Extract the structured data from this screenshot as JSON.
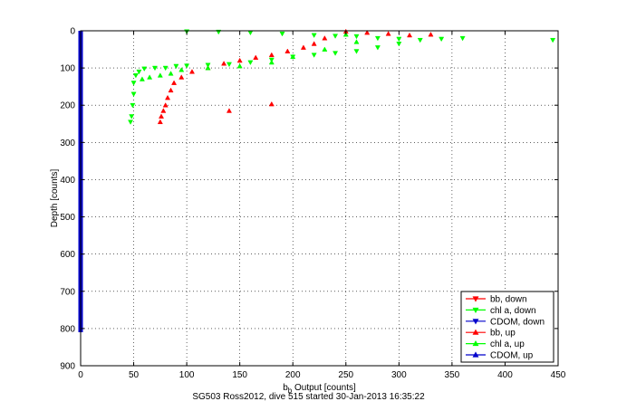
{
  "chart_data": {
    "type": "scatter",
    "title": "",
    "xlabel": "b",
    "xlabel_sub": "b",
    "xlabel_rest": " Output [counts]",
    "ylabel": "Depth [counts]",
    "xlim": [
      0,
      450
    ],
    "ylim": [
      900,
      0
    ],
    "y_inverted": true,
    "grid": true,
    "legend_placement": "bottom-right",
    "xticks": [
      "0",
      "50",
      "100",
      "150",
      "200",
      "250",
      "300",
      "350",
      "400",
      "450"
    ],
    "yticks": [
      "0",
      "100",
      "200",
      "300",
      "400",
      "500",
      "600",
      "700",
      "800",
      "900"
    ],
    "series": [
      {
        "name": "bb, down",
        "color": "#ff0000",
        "marker": "triangle-down",
        "points": []
      },
      {
        "name": "chl a, down",
        "color": "#00ff00",
        "marker": "triangle-down",
        "points": [
          [
            100,
            2
          ],
          [
            130,
            3
          ],
          [
            160,
            5
          ],
          [
            190,
            8
          ],
          [
            220,
            12
          ],
          [
            240,
            14
          ],
          [
            260,
            15
          ],
          [
            280,
            20
          ],
          [
            300,
            22
          ],
          [
            320,
            25
          ],
          [
            340,
            22
          ],
          [
            360,
            20
          ],
          [
            445,
            25
          ],
          [
            300,
            35
          ],
          [
            280,
            45
          ],
          [
            260,
            55
          ],
          [
            240,
            60
          ],
          [
            220,
            65
          ],
          [
            200,
            70
          ],
          [
            180,
            78
          ],
          [
            160,
            85
          ],
          [
            140,
            90
          ],
          [
            120,
            92
          ],
          [
            100,
            94
          ],
          [
            90,
            95
          ],
          [
            80,
            100
          ],
          [
            70,
            100
          ],
          [
            60,
            102
          ],
          [
            55,
            110
          ],
          [
            52,
            120
          ],
          [
            50,
            140
          ],
          [
            50,
            170
          ],
          [
            49,
            200
          ],
          [
            48,
            230
          ],
          [
            47,
            245
          ]
        ]
      },
      {
        "name": "CDOM, down",
        "color": "#0000cc",
        "marker": "triangle-down",
        "points": [
          [
            0,
            0
          ],
          [
            0,
            100
          ],
          [
            0,
            200
          ],
          [
            0,
            300
          ],
          [
            0,
            400
          ],
          [
            0,
            500
          ],
          [
            0,
            600
          ],
          [
            0,
            700
          ],
          [
            0,
            810
          ]
        ]
      },
      {
        "name": "bb, up",
        "color": "#ff0000",
        "marker": "triangle-up",
        "points": [
          [
            250,
            2
          ],
          [
            270,
            5
          ],
          [
            290,
            8
          ],
          [
            310,
            12
          ],
          [
            330,
            10
          ],
          [
            230,
            20
          ],
          [
            220,
            35
          ],
          [
            210,
            45
          ],
          [
            195,
            55
          ],
          [
            180,
            65
          ],
          [
            165,
            72
          ],
          [
            150,
            80
          ],
          [
            135,
            88
          ],
          [
            120,
            100
          ],
          [
            105,
            110
          ],
          [
            95,
            125
          ],
          [
            88,
            140
          ],
          [
            85,
            160
          ],
          [
            82,
            180
          ],
          [
            80,
            200
          ],
          [
            78,
            215
          ],
          [
            76,
            230
          ],
          [
            75,
            245
          ],
          [
            140,
            215
          ],
          [
            180,
            197
          ]
        ]
      },
      {
        "name": "chl a, up",
        "color": "#00ff00",
        "marker": "triangle-up",
        "points": [
          [
            250,
            10
          ],
          [
            260,
            30
          ],
          [
            230,
            50
          ],
          [
            200,
            70
          ],
          [
            180,
            85
          ],
          [
            150,
            95
          ],
          [
            120,
            100
          ],
          [
            95,
            105
          ],
          [
            85,
            115
          ],
          [
            75,
            120
          ],
          [
            65,
            125
          ],
          [
            58,
            130
          ]
        ]
      },
      {
        "name": "CDOM, up",
        "color": "#0000cc",
        "marker": "triangle-up",
        "points": []
      }
    ]
  },
  "caption": "SG503 Ross2012, dive 515 started 30-Jan-2013 16:35:22"
}
